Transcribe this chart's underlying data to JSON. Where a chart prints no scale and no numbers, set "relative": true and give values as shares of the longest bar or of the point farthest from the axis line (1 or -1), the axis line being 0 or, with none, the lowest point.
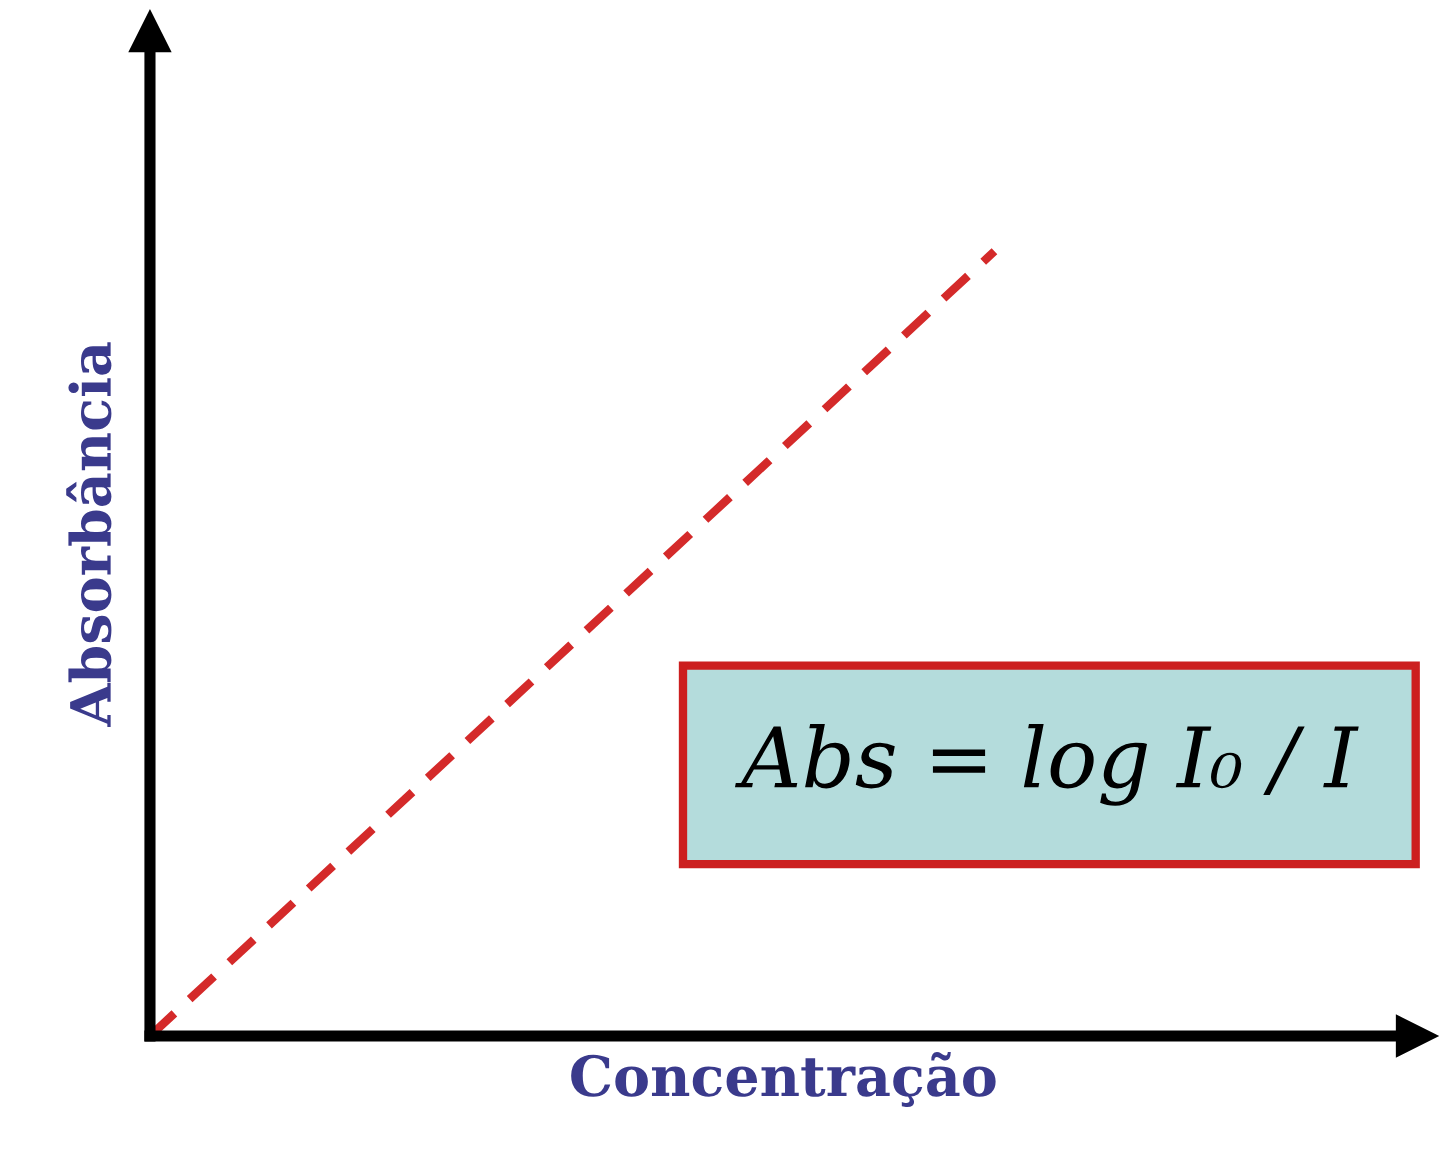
{
  "chart_data": {
    "type": "line",
    "relative": true,
    "xlabel": "Concentração",
    "ylabel": "Absorbância",
    "categories": [
      null,
      null,
      null,
      null
    ],
    "series": [
      {
        "color": "#d42a2a",
        "values": [
          0,
          0.5,
          1,
          null
        ]
      }
    ],
    "line_style": "dashed",
    "marker": "none",
    "grid": false,
    "legend": false,
    "tick_labels": false,
    "annotations": [
      "Abs = log I₀ / I"
    ]
  }
}
